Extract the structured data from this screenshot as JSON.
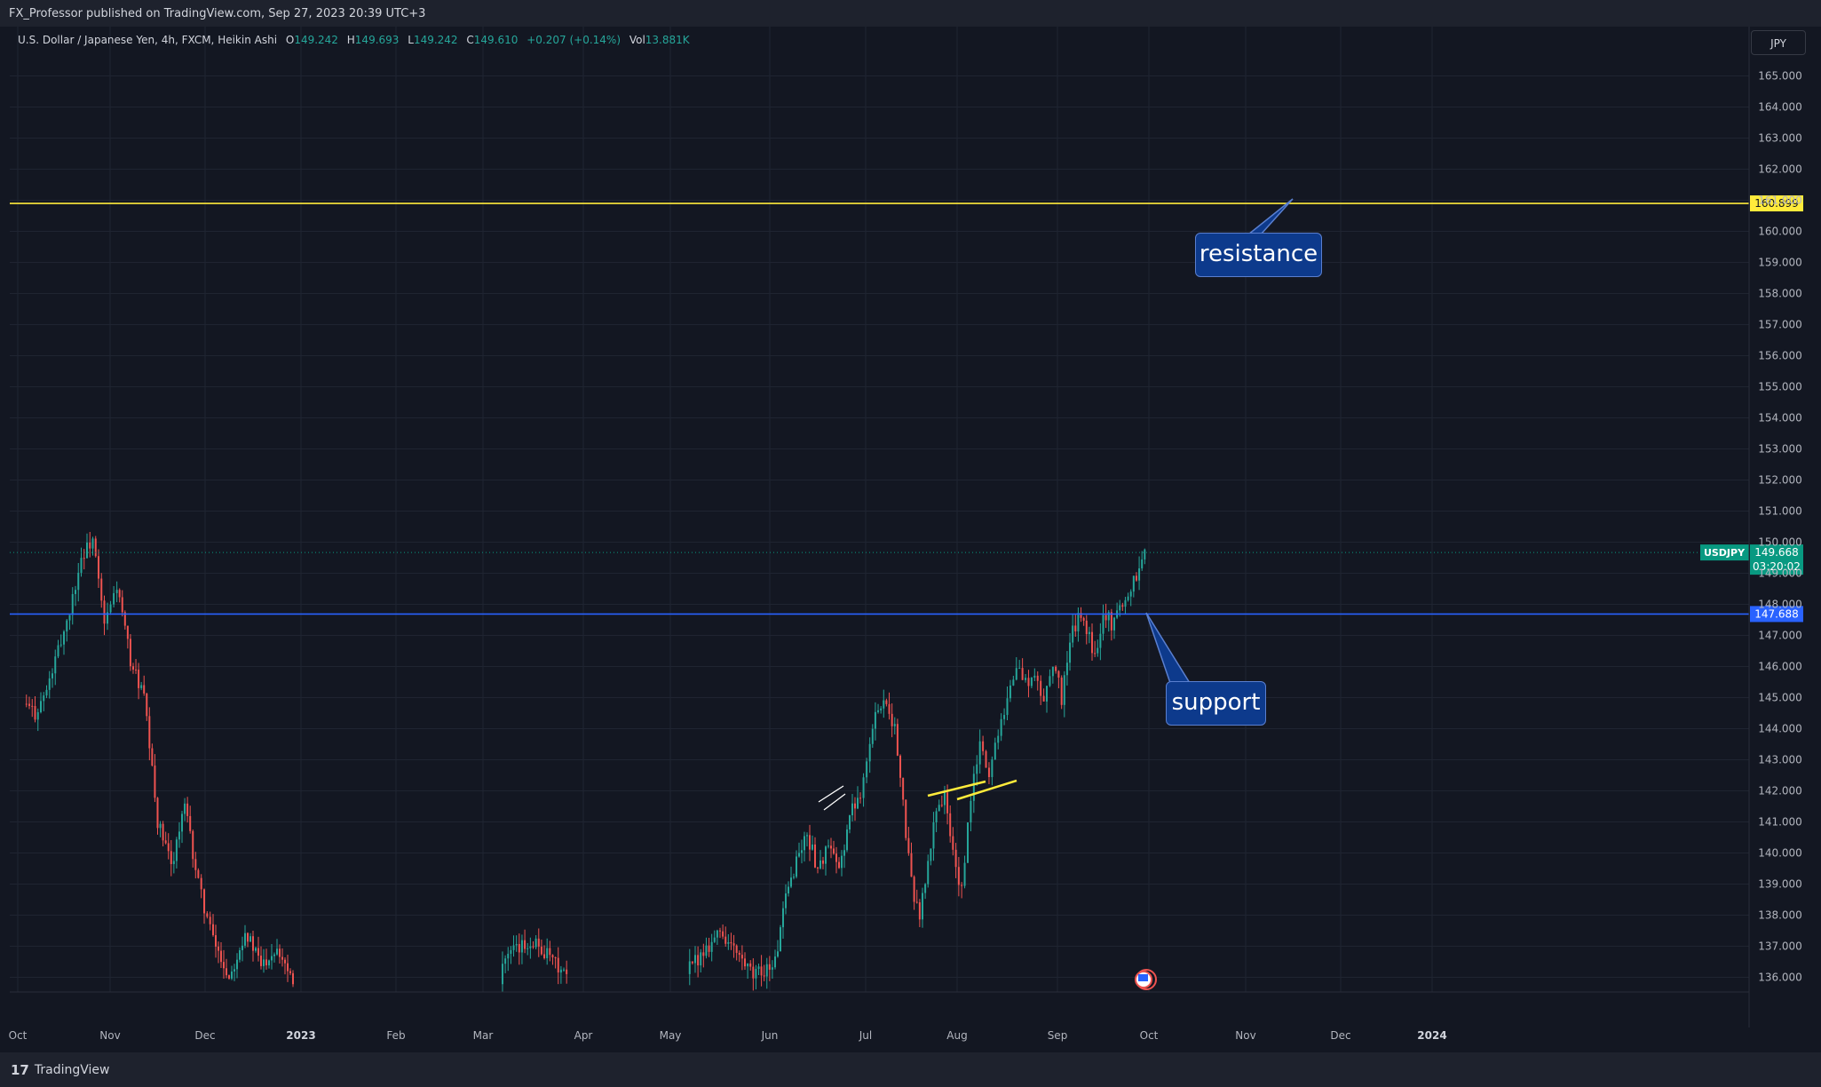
{
  "header": {
    "published": "FX_Professor published on TradingView.com, Sep 27, 2023 20:39 UTC+3"
  },
  "legend": {
    "symbol": "U.S. Dollar / Japanese Yen, 4h, FXCM, Heikin Ashi",
    "o_label": "O",
    "o_value": "149.242",
    "h_label": "H",
    "h_value": "149.693",
    "l_label": "L",
    "l_value": "149.242",
    "c_label": "C",
    "c_value": "149.610",
    "change": "+0.207 (+0.14%)",
    "vol_label": "Vol",
    "vol_value": "13.881K"
  },
  "currency_button": "JPY",
  "footer": {
    "brand": "TradingView",
    "logo": "17"
  },
  "annotations": {
    "resistance": "resistance",
    "support": "support"
  },
  "colors": {
    "background": "#131722",
    "grid": "#1f2431",
    "up": "#26a69a",
    "down": "#ef5350",
    "resistance_line": "#ffeb3b",
    "support_line": "#2962ff",
    "price_tag": "#089981",
    "callout_fill": "#0d3a8c"
  },
  "chart_data": {
    "type": "candlestick",
    "title": "U.S. Dollar / Japanese Yen, 4h, FXCM, Heikin Ashi",
    "ylim": [
      135.5,
      165.5
    ],
    "y_ticks": [
      "136.000",
      "137.000",
      "138.000",
      "139.000",
      "140.000",
      "141.000",
      "142.000",
      "143.000",
      "144.000",
      "145.000",
      "146.000",
      "147.000",
      "148.000",
      "149.000",
      "150.000",
      "151.000",
      "152.000",
      "153.000",
      "154.000",
      "155.000",
      "156.000",
      "157.000",
      "158.000",
      "159.000",
      "160.000",
      "161.000",
      "162.000",
      "163.000",
      "164.000",
      "165.000"
    ],
    "x_ticks": [
      "Oct",
      "Nov",
      "Dec",
      "2023",
      "Feb",
      "Mar",
      "Apr",
      "May",
      "Jun",
      "Jul",
      "Aug",
      "Sep",
      "Oct",
      "Nov",
      "Dec",
      "2024"
    ],
    "grid": true,
    "price_path": [
      [
        "Oct",
        144.8
      ],
      [
        "Oct",
        144.5
      ],
      [
        "Oct",
        145.2
      ],
      [
        "Oct",
        146.5
      ],
      [
        "Oct",
        147.8
      ],
      [
        "Oct",
        149.5
      ],
      [
        "Oct",
        150.1
      ],
      [
        "Oct",
        147.3
      ],
      [
        "Nov",
        148.6
      ],
      [
        "Nov",
        146.2
      ],
      [
        "Nov",
        145.0
      ],
      [
        "Nov",
        141.0
      ],
      [
        "Nov",
        139.6
      ],
      [
        "Nov",
        141.5
      ],
      [
        "Nov",
        139.0
      ],
      [
        "Dec",
        137.2
      ],
      [
        "Dec",
        136.0
      ],
      [
        "Dec",
        137.5
      ],
      [
        "Dec",
        136.4
      ],
      [
        "Dec",
        137.0
      ],
      [
        "Dec",
        136.0
      ],
      [
        "Mar",
        136.5
      ],
      [
        "Mar",
        137.2
      ],
      [
        "Mar",
        136.0
      ],
      [
        "May",
        136.2
      ],
      [
        "May",
        137.5
      ],
      [
        "May",
        136.0
      ],
      [
        "Jun",
        136.5
      ],
      [
        "Jun",
        138.5
      ],
      [
        "Jun",
        139.8
      ],
      [
        "Jun",
        140.6
      ],
      [
        "Jun",
        139.5
      ],
      [
        "Jun",
        140.2
      ],
      [
        "Jun",
        139.4
      ],
      [
        "Jun",
        141.2
      ],
      [
        "Jun",
        142.0
      ],
      [
        "Jul",
        143.5
      ],
      [
        "Jul",
        144.8
      ],
      [
        "Jul",
        144.9
      ],
      [
        "Jul",
        144.0
      ],
      [
        "Jul",
        141.5
      ],
      [
        "Jul",
        139.0
      ],
      [
        "Jul",
        138.0
      ],
      [
        "Jul",
        139.6
      ],
      [
        "Jul",
        141.5
      ],
      [
        "Jul",
        141.8
      ],
      [
        "Jul",
        140.0
      ],
      [
        "Aug",
        138.7
      ],
      [
        "Aug",
        141.8
      ],
      [
        "Aug",
        143.5
      ],
      [
        "Aug",
        142.5
      ],
      [
        "Aug",
        144.0
      ],
      [
        "Aug",
        145.0
      ],
      [
        "Aug",
        146.0
      ],
      [
        "Aug",
        145.5
      ],
      [
        "Aug",
        145.6
      ],
      [
        "Aug",
        144.9
      ],
      [
        "Aug",
        146.2
      ],
      [
        "Sep",
        145.0
      ],
      [
        "Sep",
        146.8
      ],
      [
        "Sep",
        147.6
      ],
      [
        "Sep",
        147.2
      ],
      [
        "Sep",
        146.3
      ],
      [
        "Sep",
        147.8
      ],
      [
        "Sep",
        147.4
      ],
      [
        "Sep",
        147.9
      ],
      [
        "Sep",
        148.3
      ],
      [
        "Sep",
        149.0
      ],
      [
        "Sep",
        149.61
      ]
    ],
    "horizontal_lines": [
      {
        "label": "160.899",
        "value": 160.899,
        "color": "#ffeb3b"
      },
      {
        "label": "147.688",
        "value": 147.688,
        "color": "#2962ff"
      }
    ],
    "last_price": {
      "symbol": "USDJPY",
      "value": "149.668",
      "countdown": "03:20:02"
    },
    "annotations": [
      "resistance",
      "support"
    ]
  }
}
